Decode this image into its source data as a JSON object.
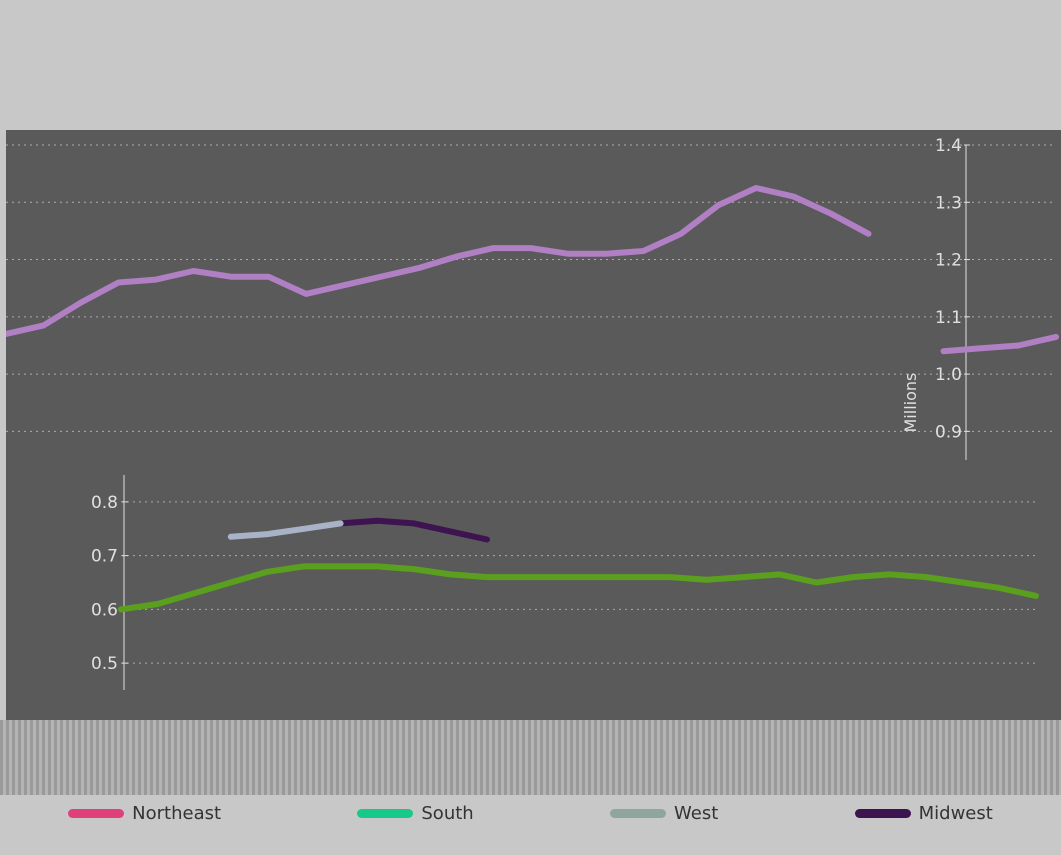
{
  "header": {
    "caption_line_1": "",
    "caption_line_2": ""
  },
  "chart_data": [
    {
      "type": "line",
      "title": "",
      "xlabel": "",
      "ylabel": "Millions",
      "y_axis_side": "right",
      "ylim": [
        0.85,
        1.4
      ],
      "yticks": [
        "0.9",
        "1.0",
        "1.1",
        "1.2",
        "1.3",
        "1.4"
      ],
      "grid": true,
      "series": [
        {
          "name": "Northeast",
          "color": "#b07fc4",
          "x": [
            0,
            1,
            2,
            3,
            4,
            5,
            6,
            7,
            8,
            9,
            10,
            11,
            12,
            13,
            14,
            15,
            16,
            17,
            18,
            19,
            20,
            21,
            22,
            23,
            24,
            25,
            26,
            27,
            28
          ],
          "values": [
            1.07,
            1.085,
            1.125,
            1.16,
            1.165,
            1.18,
            1.17,
            1.17,
            1.14,
            1.155,
            1.17,
            1.185,
            1.205,
            1.22,
            1.22,
            1.21,
            1.21,
            1.215,
            1.245,
            1.295,
            1.325,
            1.31,
            1.28,
            1.245,
            null,
            1.04,
            1.045,
            1.05,
            1.065
          ]
        }
      ]
    },
    {
      "type": "line",
      "title": "",
      "ylabel": "",
      "ylim": [
        0.45,
        0.85
      ],
      "yticks": [
        "0.5",
        "0.6",
        "0.7",
        "0.8"
      ],
      "grid": true,
      "series": [
        {
          "name": "South",
          "color": "#5aa01e",
          "x": [
            0,
            1,
            2,
            3,
            4,
            5,
            6,
            7,
            8,
            9,
            10,
            11,
            12,
            13,
            14,
            15,
            16,
            17,
            18,
            19,
            20,
            21,
            22,
            23,
            24,
            25
          ],
          "values": [
            0.6,
            0.61,
            0.63,
            0.65,
            0.67,
            0.68,
            0.68,
            0.68,
            0.675,
            0.665,
            0.66,
            0.66,
            0.66,
            0.66,
            0.66,
            0.66,
            0.655,
            0.66,
            0.665,
            0.65,
            0.66,
            0.665,
            0.66,
            0.65,
            0.64,
            0.625
          ]
        },
        {
          "name": "Midwest",
          "color": "#3d1450",
          "x": [
            6,
            7,
            8,
            9,
            10
          ],
          "values": [
            0.76,
            0.765,
            0.76,
            0.745,
            0.73
          ]
        },
        {
          "name": "West",
          "color": "#a9b3c8",
          "x": [
            3,
            4,
            5,
            6
          ],
          "values": [
            0.735,
            0.74,
            0.75,
            0.76
          ]
        }
      ]
    }
  ],
  "legend": {
    "items": [
      {
        "label": "Northeast",
        "color": "#e0407a"
      },
      {
        "label": "South",
        "color": "#18c98a"
      },
      {
        "label": "West",
        "color": "#8fa6a0"
      },
      {
        "label": "Midwest",
        "color": "#3d1450"
      }
    ]
  }
}
